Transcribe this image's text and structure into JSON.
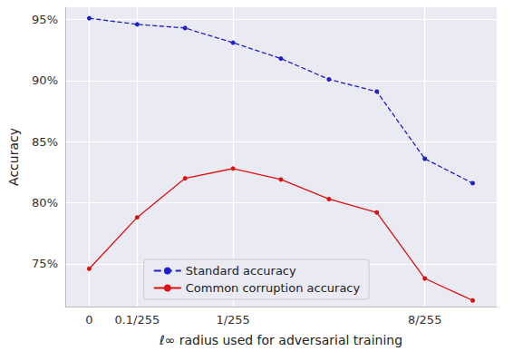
{
  "chart_data": {
    "type": "line",
    "x_label": "ℓ∞ radius used for adversarial training",
    "y_label": "Accuracy",
    "categories": [
      "0",
      "0.1/255",
      null,
      "1/255",
      null,
      null,
      null,
      "8/255",
      null
    ],
    "series": [
      {
        "name": "Standard accuracy",
        "color": "#1f1fcc",
        "line_style": "dashed",
        "marker": "circle",
        "values": [
          95.1,
          94.6,
          94.3,
          93.1,
          91.8,
          90.1,
          89.1,
          83.6,
          81.6
        ]
      },
      {
        "name": "Common corruption accuracy",
        "color": "#dd1111",
        "line_style": "solid",
        "marker": "circle",
        "values": [
          74.6,
          78.8,
          82.0,
          82.8,
          81.9,
          80.3,
          79.2,
          73.8,
          72.0
        ]
      }
    ],
    "ylim": [
      71.5,
      96
    ],
    "yticks": [
      {
        "value": 75,
        "label": "75%"
      },
      {
        "value": 80,
        "label": "80%"
      },
      {
        "value": 85,
        "label": "85%"
      },
      {
        "value": 90,
        "label": "90%"
      },
      {
        "value": 95,
        "label": "95%"
      }
    ],
    "grid": true,
    "legend": "lower center"
  }
}
